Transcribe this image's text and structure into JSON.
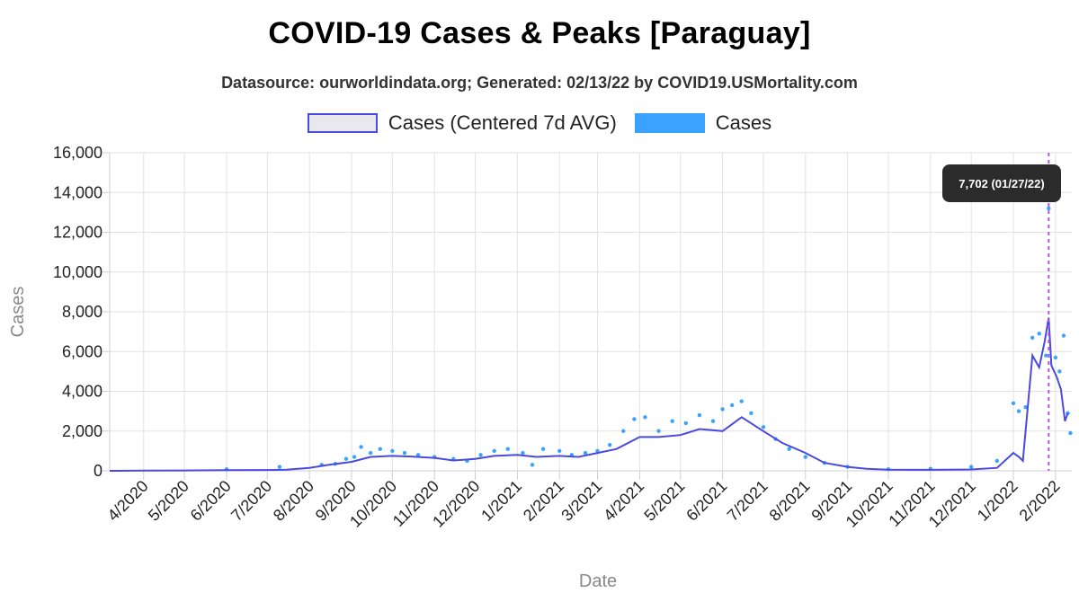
{
  "header": {
    "title": "COVID-19 Cases & Peaks [Paraguay]",
    "subtitle": "Datasource: ourworldindata.org; Generated: 02/13/22 by COVID19.USMortality.com"
  },
  "legend": {
    "avg_label": "Cases (Centered 7d AVG)",
    "cases_label": "Cases"
  },
  "tooltip": {
    "text": "7,702 (01/27/22)"
  },
  "colors": {
    "avg_line": "#4a4ae0",
    "cases_points": "#3aa3ff",
    "peak_marker": "#b455e6",
    "grid": "#e2e2e2"
  },
  "chart_data": {
    "type": "line",
    "title": "COVID-19 Cases & Peaks [Paraguay]",
    "subtitle": "Datasource: ourworldindata.org; Generated: 02/13/22 by COVID19.USMortality.com",
    "xlabel": "Date",
    "ylabel": "Cases",
    "ylim": [
      0,
      16000
    ],
    "xlim": [
      "2020-03-07",
      "2022-02-13"
    ],
    "y_ticks": [
      0,
      2000,
      4000,
      6000,
      8000,
      10000,
      12000,
      14000,
      16000
    ],
    "y_tick_labels": [
      "0",
      "2,000",
      "4,000",
      "6,000",
      "8,000",
      "10,000",
      "12,000",
      "14,000",
      "16,000"
    ],
    "x_ticks": [
      "2020-04-01",
      "2020-05-01",
      "2020-06-01",
      "2020-07-01",
      "2020-08-01",
      "2020-09-01",
      "2020-10-01",
      "2020-11-01",
      "2020-12-01",
      "2021-01-01",
      "2021-02-01",
      "2021-03-01",
      "2021-04-01",
      "2021-05-01",
      "2021-06-01",
      "2021-07-01",
      "2021-08-01",
      "2021-09-01",
      "2021-10-01",
      "2021-11-01",
      "2021-12-01",
      "2022-01-01",
      "2022-02-01"
    ],
    "x_tick_labels": [
      "4/2020",
      "5/2020",
      "6/2020",
      "7/2020",
      "8/2020",
      "9/2020",
      "10/2020",
      "11/2020",
      "12/2020",
      "1/2021",
      "2/2021",
      "3/2021",
      "4/2021",
      "5/2021",
      "6/2021",
      "7/2021",
      "8/2021",
      "9/2021",
      "10/2021",
      "11/2021",
      "12/2021",
      "1/2022",
      "2/2022"
    ],
    "grid": true,
    "legend_position": "top",
    "series": [
      {
        "name": "Cases (Centered 7d AVG)",
        "style": "line",
        "points": [
          [
            "2020-03-07",
            0
          ],
          [
            "2020-04-01",
            10
          ],
          [
            "2020-05-01",
            20
          ],
          [
            "2020-06-01",
            30
          ],
          [
            "2020-07-01",
            40
          ],
          [
            "2020-07-15",
            60
          ],
          [
            "2020-08-01",
            150
          ],
          [
            "2020-08-15",
            300
          ],
          [
            "2020-09-01",
            450
          ],
          [
            "2020-09-15",
            700
          ],
          [
            "2020-10-01",
            750
          ],
          [
            "2020-10-15",
            720
          ],
          [
            "2020-11-01",
            650
          ],
          [
            "2020-11-15",
            520
          ],
          [
            "2020-12-01",
            600
          ],
          [
            "2020-12-15",
            750
          ],
          [
            "2021-01-01",
            800
          ],
          [
            "2021-01-15",
            700
          ],
          [
            "2021-02-01",
            750
          ],
          [
            "2021-02-15",
            700
          ],
          [
            "2021-03-01",
            900
          ],
          [
            "2021-03-15",
            1100
          ],
          [
            "2021-04-01",
            1700
          ],
          [
            "2021-04-15",
            1700
          ],
          [
            "2021-05-01",
            1800
          ],
          [
            "2021-05-15",
            2100
          ],
          [
            "2021-06-01",
            2000
          ],
          [
            "2021-06-15",
            2700
          ],
          [
            "2021-07-01",
            2000
          ],
          [
            "2021-07-15",
            1400
          ],
          [
            "2021-08-01",
            900
          ],
          [
            "2021-08-15",
            400
          ],
          [
            "2021-09-01",
            200
          ],
          [
            "2021-09-15",
            100
          ],
          [
            "2021-10-01",
            60
          ],
          [
            "2021-11-01",
            50
          ],
          [
            "2021-12-01",
            70
          ],
          [
            "2021-12-20",
            150
          ],
          [
            "2022-01-01",
            900
          ],
          [
            "2022-01-05",
            700
          ],
          [
            "2022-01-08",
            500
          ],
          [
            "2022-01-12",
            3500
          ],
          [
            "2022-01-15",
            5800
          ],
          [
            "2022-01-20",
            5200
          ],
          [
            "2022-01-24",
            6500
          ],
          [
            "2022-01-27",
            7702
          ],
          [
            "2022-01-29",
            5300
          ],
          [
            "2022-02-02",
            4700
          ],
          [
            "2022-02-05",
            4100
          ],
          [
            "2022-02-08",
            2500
          ],
          [
            "2022-02-10",
            2900
          ]
        ]
      },
      {
        "name": "Cases",
        "style": "points",
        "points": [
          [
            "2020-06-01",
            80
          ],
          [
            "2020-07-10",
            200
          ],
          [
            "2020-08-10",
            300
          ],
          [
            "2020-08-20",
            350
          ],
          [
            "2020-08-28",
            600
          ],
          [
            "2020-09-03",
            700
          ],
          [
            "2020-09-08",
            1200
          ],
          [
            "2020-09-15",
            900
          ],
          [
            "2020-09-22",
            1100
          ],
          [
            "2020-10-01",
            1000
          ],
          [
            "2020-10-10",
            900
          ],
          [
            "2020-10-20",
            800
          ],
          [
            "2020-11-01",
            700
          ],
          [
            "2020-11-15",
            600
          ],
          [
            "2020-11-25",
            500
          ],
          [
            "2020-12-05",
            800
          ],
          [
            "2020-12-15",
            1000
          ],
          [
            "2020-12-25",
            1100
          ],
          [
            "2021-01-05",
            900
          ],
          [
            "2021-01-12",
            300
          ],
          [
            "2021-01-20",
            1100
          ],
          [
            "2021-02-01",
            1000
          ],
          [
            "2021-02-10",
            800
          ],
          [
            "2021-02-20",
            900
          ],
          [
            "2021-03-01",
            1000
          ],
          [
            "2021-03-10",
            1300
          ],
          [
            "2021-03-20",
            2000
          ],
          [
            "2021-03-28",
            2600
          ],
          [
            "2021-04-05",
            2700
          ],
          [
            "2021-04-15",
            2000
          ],
          [
            "2021-04-25",
            2500
          ],
          [
            "2021-05-05",
            2400
          ],
          [
            "2021-05-15",
            2800
          ],
          [
            "2021-05-25",
            2500
          ],
          [
            "2021-06-01",
            3100
          ],
          [
            "2021-06-08",
            3300
          ],
          [
            "2021-06-15",
            3500
          ],
          [
            "2021-06-22",
            2900
          ],
          [
            "2021-07-01",
            2200
          ],
          [
            "2021-07-10",
            1600
          ],
          [
            "2021-07-20",
            1100
          ],
          [
            "2021-08-01",
            700
          ],
          [
            "2021-08-15",
            400
          ],
          [
            "2021-09-01",
            200
          ],
          [
            "2021-10-01",
            80
          ],
          [
            "2021-11-01",
            100
          ],
          [
            "2021-12-01",
            200
          ],
          [
            "2021-12-20",
            500
          ],
          [
            "2022-01-01",
            3400
          ],
          [
            "2022-01-05",
            3000
          ],
          [
            "2022-01-10",
            3200
          ],
          [
            "2022-01-15",
            6700
          ],
          [
            "2022-01-20",
            6900
          ],
          [
            "2022-01-25",
            5800
          ],
          [
            "2022-01-27",
            13200
          ],
          [
            "2022-02-01",
            5700
          ],
          [
            "2022-02-04",
            5000
          ],
          [
            "2022-02-07",
            6800
          ],
          [
            "2022-02-10",
            2900
          ],
          [
            "2022-02-12",
            1900
          ]
        ]
      }
    ],
    "peak": {
      "date": "2022-01-27",
      "value": 7702,
      "label": "7,702 (01/27/22)"
    }
  }
}
